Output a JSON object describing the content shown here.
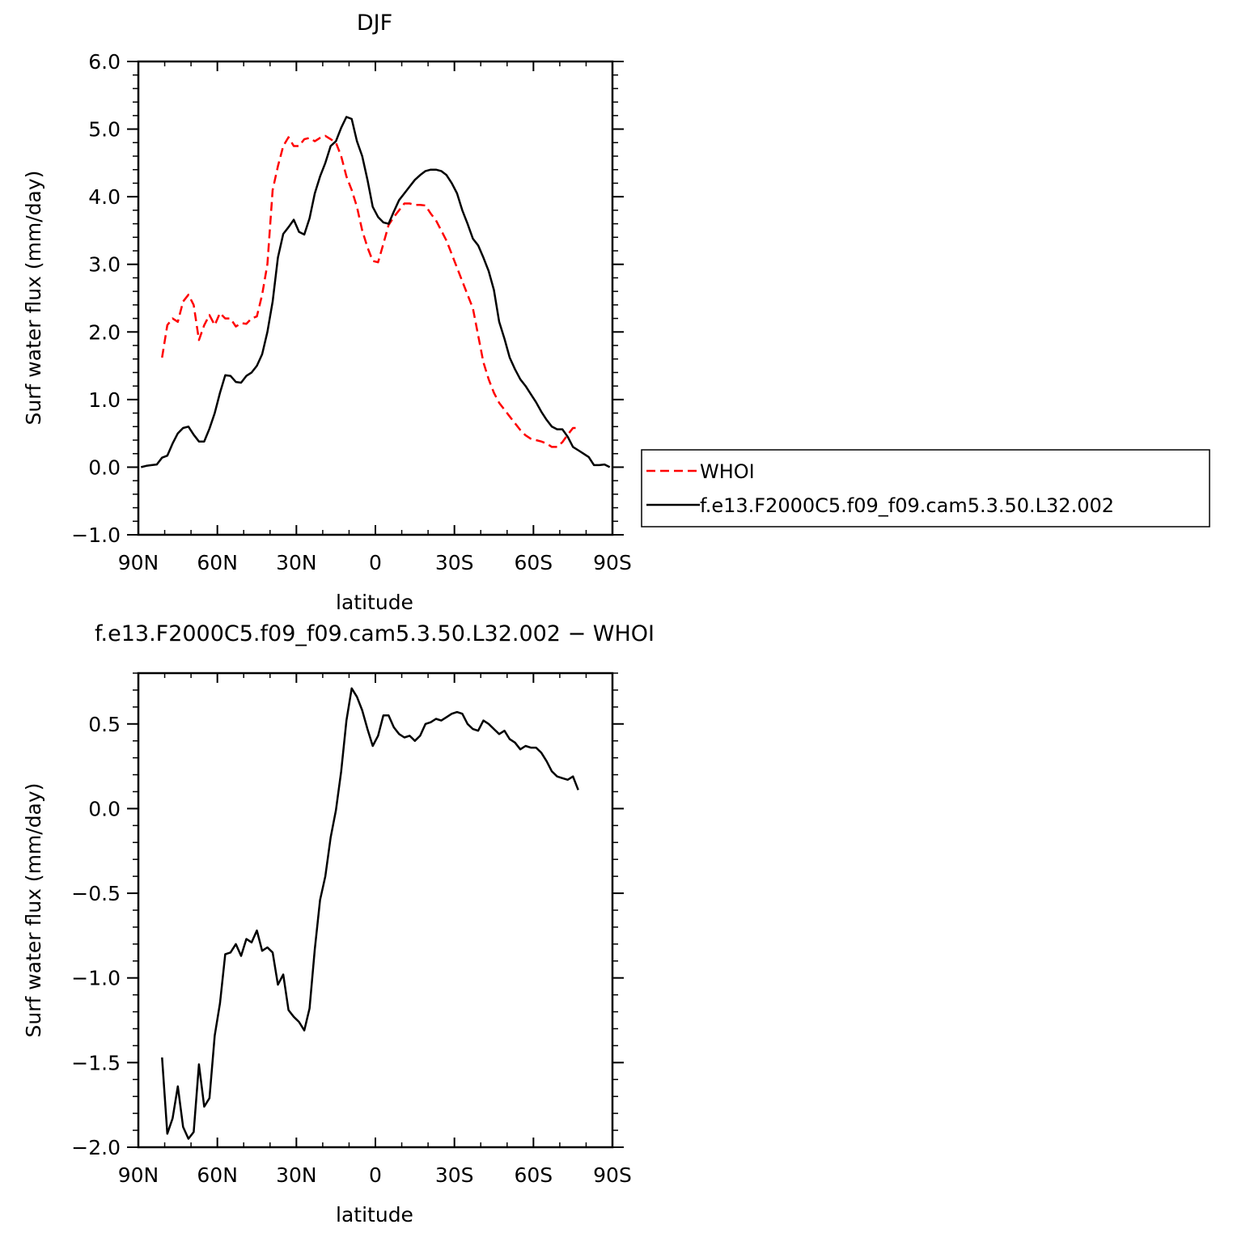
{
  "chart_data": [
    {
      "type": "line",
      "title": "DJF",
      "xlabel": "latitude",
      "ylabel": "Surf water flux (mm/day)",
      "xlim": [
        90,
        -90
      ],
      "ylim": [
        -1.0,
        6.0
      ],
      "x_ticks": [
        90,
        60,
        30,
        0,
        -30,
        -60,
        -90
      ],
      "x_tick_labels": [
        "90N",
        "60N",
        "30N",
        "0",
        "30S",
        "60S",
        "90S"
      ],
      "y_ticks": [
        -1.0,
        0.0,
        1.0,
        2.0,
        3.0,
        4.0,
        5.0,
        6.0
      ],
      "y_tick_labels": [
        "−1.0",
        "0.0",
        "1.0",
        "2.0",
        "3.0",
        "4.0",
        "5.0",
        "6.0"
      ],
      "legend": {
        "placement": "right, outside plot"
      },
      "series": [
        {
          "name": "WHOI",
          "color": "#ff0000",
          "dash": "dashed",
          "x": [
            81,
            79,
            77,
            75,
            73,
            71,
            69,
            67,
            65,
            63,
            61,
            59,
            57,
            55,
            53,
            51,
            49,
            47,
            45,
            43,
            41,
            39,
            37,
            35,
            33,
            31,
            29,
            27,
            25,
            23,
            21,
            19,
            17,
            15,
            13,
            11,
            9,
            7,
            5,
            3,
            1,
            -1,
            -3,
            -5,
            -7,
            -9,
            -11,
            -13,
            -15,
            -17,
            -19,
            -21,
            -23,
            -25,
            -27,
            -29,
            -31,
            -33,
            -35,
            -37,
            -39,
            -41,
            -43,
            -45,
            -47,
            -49,
            -51,
            -53,
            -55,
            -57,
            -59,
            -61,
            -63,
            -65,
            -67,
            -69,
            -71,
            -73,
            -75,
            -77
          ],
          "y": [
            1.62,
            2.1,
            2.2,
            2.15,
            2.45,
            2.55,
            2.4,
            1.88,
            2.1,
            2.25,
            2.1,
            2.28,
            2.2,
            2.2,
            2.08,
            2.13,
            2.12,
            2.2,
            2.23,
            2.55,
            3.0,
            4.1,
            4.45,
            4.75,
            4.88,
            4.75,
            4.75,
            4.85,
            4.87,
            4.82,
            4.87,
            4.9,
            4.85,
            4.8,
            4.6,
            4.3,
            4.1,
            3.85,
            3.5,
            3.25,
            3.05,
            3.03,
            3.3,
            3.58,
            3.7,
            3.8,
            3.9,
            3.9,
            3.88,
            3.88,
            3.87,
            3.75,
            3.65,
            3.5,
            3.35,
            3.15,
            2.95,
            2.75,
            2.55,
            2.35,
            1.95,
            1.55,
            1.3,
            1.1,
            0.95,
            0.85,
            0.75,
            0.65,
            0.55,
            0.47,
            0.42,
            0.4,
            0.38,
            0.35,
            0.3,
            0.3,
            0.37,
            0.48,
            0.58,
            0.58
          ]
        },
        {
          "name": "f.e13.F2000C5.f09_f09.cam5.3.50.L32.002",
          "color": "#000000",
          "dash": "solid",
          "x": [
            89,
            87,
            85,
            83,
            81,
            79,
            77,
            75,
            73,
            71,
            69,
            67,
            65,
            63,
            61,
            59,
            57,
            55,
            53,
            51,
            49,
            47,
            45,
            43,
            41,
            39,
            37,
            35,
            33,
            31,
            29,
            27,
            25,
            23,
            21,
            19,
            17,
            15,
            13,
            11,
            9,
            7,
            5,
            3,
            1,
            -1,
            -3,
            -5,
            -7,
            -9,
            -11,
            -13,
            -15,
            -17,
            -19,
            -21,
            -23,
            -25,
            -27,
            -29,
            -31,
            -33,
            -35,
            -37,
            -39,
            -41,
            -43,
            -45,
            -47,
            -49,
            -51,
            -53,
            -55,
            -57,
            -59,
            -61,
            -63,
            -65,
            -67,
            -69,
            -71,
            -73,
            -75,
            -77,
            -79,
            -81,
            -83,
            -85,
            -87,
            -89
          ],
          "y": [
            0.0,
            0.02,
            0.03,
            0.04,
            0.14,
            0.17,
            0.35,
            0.5,
            0.58,
            0.6,
            0.48,
            0.38,
            0.38,
            0.57,
            0.8,
            1.1,
            1.36,
            1.35,
            1.26,
            1.25,
            1.35,
            1.4,
            1.5,
            1.67,
            2.0,
            2.45,
            3.1,
            3.45,
            3.55,
            3.66,
            3.48,
            3.44,
            3.68,
            4.05,
            4.3,
            4.5,
            4.75,
            4.82,
            5.02,
            5.18,
            5.15,
            4.82,
            4.6,
            4.25,
            3.85,
            3.7,
            3.62,
            3.6,
            3.78,
            3.95,
            4.05,
            4.15,
            4.25,
            4.32,
            4.38,
            4.4,
            4.4,
            4.38,
            4.32,
            4.2,
            4.05,
            3.8,
            3.6,
            3.38,
            3.28,
            3.1,
            2.9,
            2.62,
            2.15,
            1.9,
            1.62,
            1.45,
            1.3,
            1.2,
            1.08,
            0.96,
            0.82,
            0.7,
            0.6,
            0.56,
            0.56,
            0.45,
            0.3,
            0.25,
            0.2,
            0.15,
            0.03,
            0.03,
            0.04,
            0.0
          ]
        }
      ]
    },
    {
      "type": "line",
      "title": "f.e13.F2000C5.f09_f09.cam5.3.50.L32.002 − WHOI",
      "xlabel": "latitude",
      "ylabel": "Surf water flux (mm/day)",
      "xlim": [
        90,
        -90
      ],
      "ylim": [
        -2.0,
        0.8
      ],
      "x_ticks": [
        90,
        60,
        30,
        0,
        -30,
        -60,
        -90
      ],
      "x_tick_labels": [
        "90N",
        "60N",
        "30N",
        "0",
        "30S",
        "60S",
        "90S"
      ],
      "y_ticks": [
        -2.0,
        -1.5,
        -1.0,
        -0.5,
        0.0,
        0.5
      ],
      "y_tick_labels": [
        "−2.0",
        "−1.5",
        "−1.0",
        "−0.5",
        "0.0",
        "0.5"
      ],
      "series": [
        {
          "color": "#000000",
          "dash": "solid",
          "x": [
            81,
            79,
            77,
            75,
            73,
            71,
            69,
            67,
            65,
            63,
            61,
            59,
            57,
            55,
            53,
            51,
            49,
            47,
            45,
            43,
            41,
            39,
            37,
            35,
            33,
            31,
            29,
            27,
            25,
            23,
            21,
            19,
            17,
            15,
            13,
            11,
            9,
            7,
            5,
            3,
            1,
            -1,
            -3,
            -5,
            -7,
            -9,
            -11,
            -13,
            -15,
            -17,
            -19,
            -21,
            -23,
            -25,
            -27,
            -29,
            -31,
            -33,
            -35,
            -37,
            -39,
            -41,
            -43,
            -45,
            -47,
            -49,
            -51,
            -53,
            -55,
            -57,
            -59,
            -61,
            -63,
            -65,
            -67,
            -69,
            -71,
            -73,
            -75,
            -77
          ],
          "y": [
            -1.47,
            -1.92,
            -1.83,
            -1.64,
            -1.88,
            -1.95,
            -1.91,
            -1.51,
            -1.76,
            -1.71,
            -1.34,
            -1.15,
            -0.86,
            -0.85,
            -0.8,
            -0.87,
            -0.77,
            -0.79,
            -0.72,
            -0.84,
            -0.82,
            -0.85,
            -1.04,
            -0.98,
            -1.19,
            -1.23,
            -1.26,
            -1.31,
            -1.18,
            -0.83,
            -0.54,
            -0.4,
            -0.17,
            -0.01,
            0.22,
            0.52,
            0.71,
            0.66,
            0.58,
            0.47,
            0.37,
            0.43,
            0.55,
            0.55,
            0.48,
            0.44,
            0.42,
            0.43,
            0.4,
            0.43,
            0.5,
            0.51,
            0.53,
            0.52,
            0.54,
            0.56,
            0.57,
            0.56,
            0.5,
            0.47,
            0.46,
            0.52,
            0.5,
            0.47,
            0.44,
            0.46,
            0.41,
            0.39,
            0.35,
            0.37,
            0.36,
            0.36,
            0.33,
            0.28,
            0.22,
            0.19,
            0.18,
            0.17,
            0.19,
            0.11
          ]
        }
      ]
    }
  ]
}
